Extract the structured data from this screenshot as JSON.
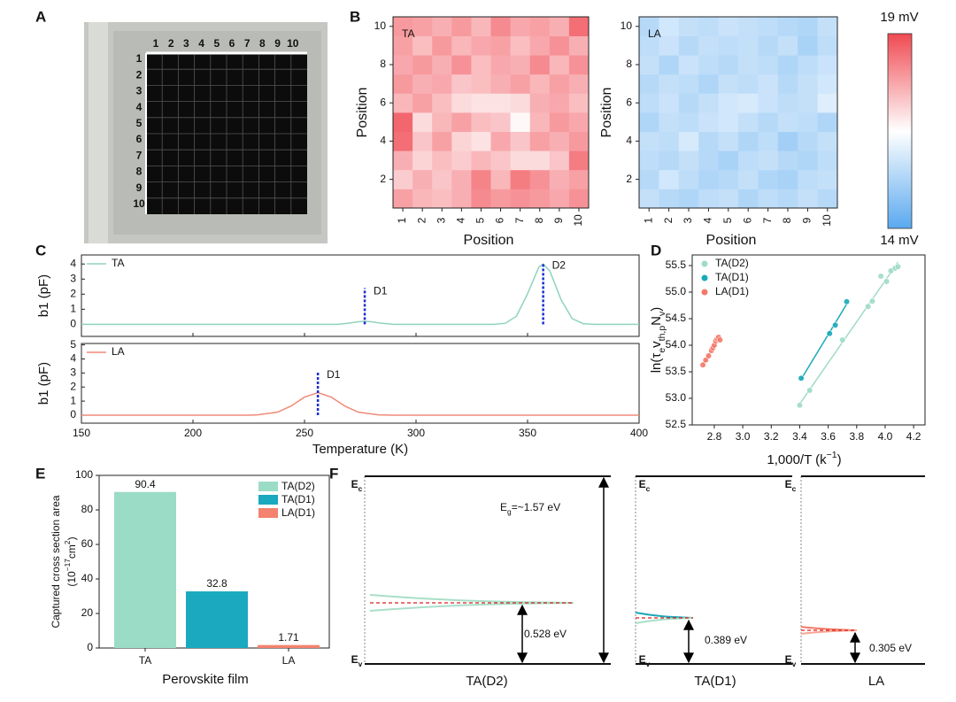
{
  "panels": [
    "A",
    "B",
    "C",
    "D",
    "E",
    "F"
  ],
  "photo": {
    "columns": [
      1,
      2,
      3,
      4,
      5,
      6,
      7,
      8,
      9,
      10
    ],
    "rows": [
      1,
      2,
      3,
      4,
      5,
      6,
      7,
      8,
      9,
      10
    ]
  },
  "colorbar": {
    "min": 14,
    "max": 19,
    "labels": [
      {
        "value": 19,
        "label": "19 mV"
      },
      {
        "value": 14,
        "label": "14 mV"
      }
    ]
  },
  "chart_data": [
    {
      "type": "heatmap",
      "title": "TA",
      "xlabel": "Position",
      "ylabel": "Position",
      "xlim": [
        0.5,
        10.5
      ],
      "ylim": [
        0.5,
        10.5
      ],
      "xticks": [
        1,
        2,
        3,
        4,
        5,
        6,
        7,
        8,
        9,
        10
      ],
      "yticks": [
        2,
        4,
        6,
        8,
        10
      ],
      "values": [
        [
          17.8,
          17.5,
          17.4,
          17.6,
          18.1,
          17.9,
          18.0,
          17.9,
          17.7,
          18.0
        ],
        [
          17.2,
          17.6,
          17.3,
          17.6,
          18.2,
          17.5,
          18.3,
          18.0,
          17.6,
          17.8
        ],
        [
          17.6,
          17.1,
          17.4,
          17.2,
          17.5,
          17.3,
          17.0,
          17.0,
          17.3,
          18.3
        ],
        [
          18.5,
          17.3,
          17.8,
          17.1,
          16.9,
          17.7,
          17.3,
          17.8,
          17.6,
          17.9
        ],
        [
          18.6,
          17.0,
          17.5,
          17.8,
          17.4,
          17.3,
          16.6,
          17.5,
          17.9,
          17.7
        ],
        [
          17.5,
          17.8,
          17.4,
          17.0,
          16.9,
          16.9,
          17.0,
          17.6,
          17.7,
          17.4
        ],
        [
          17.9,
          17.6,
          17.7,
          17.3,
          17.4,
          17.6,
          17.8,
          17.5,
          17.8,
          17.6
        ],
        [
          17.7,
          17.9,
          17.6,
          18.0,
          17.4,
          17.7,
          17.6,
          18.1,
          17.5,
          18.0
        ],
        [
          17.8,
          17.4,
          17.9,
          17.5,
          17.7,
          17.8,
          17.4,
          17.7,
          18.0,
          17.6
        ],
        [
          17.9,
          17.8,
          17.6,
          17.9,
          17.5,
          18.1,
          17.7,
          17.8,
          17.6,
          18.5
        ]
      ]
    },
    {
      "type": "heatmap",
      "title": "LA",
      "xlabel": "Position",
      "ylabel": "Position",
      "xlim": [
        0.5,
        10.5
      ],
      "ylim": [
        0.5,
        10.5
      ],
      "xticks": [
        1,
        2,
        3,
        4,
        5,
        6,
        7,
        8,
        9,
        10
      ],
      "yticks": [
        2,
        4,
        6,
        8,
        10
      ],
      "values": [
        [
          15.6,
          15.4,
          15.3,
          15.5,
          15.6,
          15.3,
          15.5,
          15.4,
          15.6,
          15.4
        ],
        [
          15.4,
          15.8,
          15.5,
          15.3,
          15.4,
          15.6,
          15.3,
          15.2,
          15.5,
          15.6
        ],
        [
          15.5,
          15.4,
          15.6,
          15.4,
          15.2,
          15.5,
          15.6,
          15.4,
          15.3,
          15.5
        ],
        [
          15.6,
          15.5,
          15.9,
          15.4,
          15.6,
          15.3,
          15.5,
          15.1,
          15.4,
          15.6
        ],
        [
          15.3,
          15.6,
          15.5,
          15.7,
          15.8,
          15.6,
          15.4,
          15.6,
          15.5,
          15.3
        ],
        [
          15.5,
          15.7,
          15.4,
          15.6,
          15.8,
          15.9,
          15.7,
          15.5,
          15.6,
          16.0
        ],
        [
          15.4,
          15.6,
          15.5,
          15.3,
          15.6,
          15.5,
          15.7,
          15.4,
          15.6,
          15.8
        ],
        [
          15.6,
          15.3,
          15.7,
          15.5,
          15.4,
          15.6,
          15.5,
          15.3,
          15.5,
          15.7
        ],
        [
          15.5,
          15.7,
          15.4,
          15.6,
          15.5,
          15.6,
          15.4,
          15.6,
          15.2,
          15.5
        ],
        [
          15.4,
          15.8,
          15.6,
          15.5,
          15.7,
          15.6,
          15.5,
          15.4,
          15.3,
          15.6
        ]
      ]
    },
    {
      "type": "line",
      "ylabel": "b1 (pF)",
      "xlim": [
        150,
        400
      ],
      "xticks": [
        150,
        200,
        250,
        300,
        350,
        400
      ],
      "ylim": [
        -0.8,
        4.6
      ],
      "yticks": [
        0,
        1,
        2,
        3,
        4
      ],
      "series": [
        {
          "name": "TA",
          "color": "#8fd3bd",
          "x": [
            150,
            265,
            270,
            274,
            277,
            280,
            284,
            290,
            335,
            340,
            345,
            350,
            355,
            357,
            360,
            365,
            370,
            375,
            380,
            400
          ],
          "values": [
            0,
            0,
            0.08,
            0.17,
            0.2,
            0.17,
            0.08,
            0,
            0,
            0.07,
            0.54,
            2.03,
            3.78,
            4.0,
            3.53,
            1.64,
            0.38,
            0.04,
            0,
            0
          ]
        }
      ],
      "markers": [
        {
          "label": "D1",
          "x": 277,
          "y": 2.4
        },
        {
          "label": "D2",
          "x": 357,
          "y": 4.1
        }
      ]
    },
    {
      "type": "line",
      "ylabel": "b1 (pF)",
      "xlabel": "Temperature (K)",
      "xlim": [
        150,
        400
      ],
      "xticks": [
        150,
        200,
        250,
        300,
        350,
        400
      ],
      "ylim": [
        -0.57,
        5.1
      ],
      "yticks": [
        0,
        1,
        2,
        3,
        4,
        5
      ],
      "series": [
        {
          "name": "LA",
          "color": "#f08a78",
          "x": [
            150,
            225,
            229,
            238,
            244,
            250,
            256,
            262,
            268,
            274,
            283,
            290,
            400
          ],
          "values": [
            0,
            0,
            0.02,
            0.22,
            0.65,
            1.28,
            1.6,
            1.28,
            0.65,
            0.22,
            0.02,
            0,
            0
          ]
        }
      ],
      "markers": [
        {
          "label": "D1",
          "x": 256,
          "y": 3.1
        }
      ]
    },
    {
      "type": "scatter",
      "xlabel": [
        {
          "text": "1,000/T (k"
        },
        {
          "text": "−1",
          "sup": true
        },
        {
          "text": ")"
        }
      ],
      "ylabel": [
        {
          "text": "ln(τ"
        },
        {
          "text": "e",
          "sub": true
        },
        {
          "text": "v"
        },
        {
          "text": "th,p",
          "sub": true
        },
        {
          "text": "N"
        },
        {
          "text": "v",
          "sub": true
        },
        {
          "text": ")"
        }
      ],
      "xlim": [
        2.645,
        4.28
      ],
      "xticks": [
        2.8,
        {
          "value": 3,
          "label": "3.0"
        },
        3.2,
        3.4,
        3.6,
        3.8,
        {
          "value": 4,
          "label": "4.0"
        },
        4.2
      ],
      "ylim": [
        52.5,
        55.7
      ],
      "yticks": [
        52.5,
        {
          "value": 53,
          "label": "53.0"
        },
        53.5,
        {
          "value": 54,
          "label": "54.0"
        },
        54.5,
        {
          "value": 55,
          "label": "55.0"
        },
        55.5
      ],
      "series": [
        {
          "name": "TA(D2)",
          "color": "#9fdcc4",
          "x": [
            3.4,
            3.47,
            3.7,
            3.88,
            3.91,
            3.97,
            4.01,
            4.04,
            4.07,
            4.09
          ],
          "values": [
            52.87,
            53.15,
            54.1,
            54.73,
            54.83,
            55.3,
            55.2,
            55.4,
            55.45,
            55.48
          ]
        },
        {
          "name": "TA(D1)",
          "color": "#1aa9b8",
          "x": [
            3.41,
            3.61,
            3.65,
            3.73
          ],
          "values": [
            53.38,
            54.22,
            54.38,
            54.82
          ]
        },
        {
          "name": "LA(D1)",
          "color": "#f47a6a",
          "x": [
            2.72,
            2.74,
            2.76,
            2.78,
            2.79,
            2.8,
            2.81,
            2.82,
            2.83,
            2.84
          ],
          "values": [
            53.63,
            53.72,
            53.8,
            53.9,
            53.95,
            54.0,
            54.08,
            54.12,
            54.15,
            54.1
          ]
        }
      ]
    },
    {
      "type": "bar",
      "categories": [
        "TA",
        null,
        "LA"
      ],
      "values": [
        90.4,
        32.8,
        1.71
      ],
      "colors": [
        "#9bdcc6",
        "#1aa9bf",
        "#f4826e"
      ],
      "legend": [
        "TA(D2)",
        "TA(D1)",
        "LA(D1)"
      ],
      "ylim": [
        0,
        100
      ],
      "yticks": [
        0,
        20,
        40,
        60,
        80,
        100
      ],
      "xlabel": "Perovskite film",
      "ylabel": [
        [
          {
            "text": "Captured cross section  area"
          }
        ],
        [
          {
            "text": "(10"
          },
          {
            "text": "−17",
            "sup": true
          },
          {
            "text": "cm"
          },
          {
            "text": "2",
            "sup": true
          },
          {
            "text": ")"
          }
        ]
      ]
    }
  ],
  "band_diagram": {
    "ec": [
      {
        "text": "E"
      },
      {
        "text": "c",
        "sub": true
      }
    ],
    "ev": [
      {
        "text": "E"
      },
      {
        "text": "v",
        "sub": true
      }
    ],
    "gap": [
      {
        "text": "E"
      },
      {
        "text": "g",
        "sub": true
      },
      {
        "text": "=~1.57 eV"
      }
    ],
    "panels": [
      {
        "title": "TA(D2)",
        "trap": "0.528 eV"
      },
      {
        "title": "TA(D1)",
        "trap": "0.389 eV"
      },
      {
        "title": "LA",
        "trap": "0.305 eV"
      }
    ]
  }
}
